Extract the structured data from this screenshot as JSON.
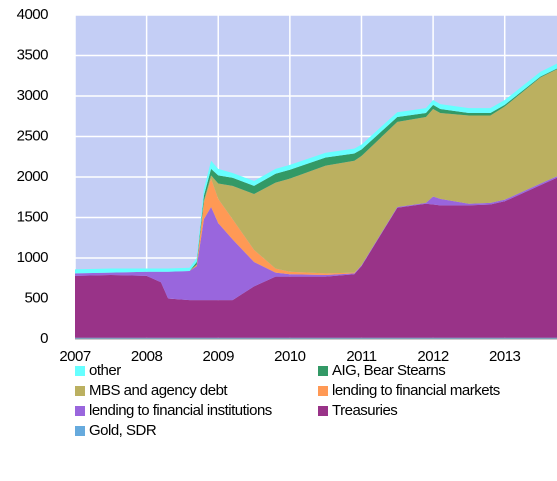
{
  "chart_data": {
    "type": "stacked_area",
    "x": [
      2007,
      2007.5,
      2008,
      2008.2,
      2008.3,
      2008.6,
      2008.7,
      2008.8,
      2008.9,
      2009.0,
      2009.2,
      2009.5,
      2009.8,
      2010.0,
      2010.5,
      2010.9,
      2011.0,
      2011.5,
      2011.9,
      2012.0,
      2012.1,
      2012.5,
      2012.8,
      2013.0,
      2013.5,
      2013.73
    ],
    "series": [
      {
        "name": "other",
        "color": "#66ffff",
        "values": [
          50,
          50,
          40,
          40,
          40,
          40,
          50,
          80,
          100,
          80,
          60,
          60,
          60,
          60,
          60,
          60,
          60,
          60,
          60,
          60,
          60,
          60,
          60,
          60,
          60,
          60
        ]
      },
      {
        "name": "AIG, Bear Stearns",
        "color": "#339966",
        "values": [
          0,
          0,
          0,
          0,
          0,
          0,
          30,
          60,
          80,
          100,
          100,
          100,
          110,
          110,
          100,
          90,
          80,
          60,
          50,
          50,
          50,
          30,
          30,
          20,
          10,
          10
        ]
      },
      {
        "name": "MBS and agency debt",
        "color": "#bbb060",
        "values": [
          0,
          0,
          0,
          0,
          0,
          0,
          0,
          30,
          40,
          190,
          410,
          690,
          1060,
          1150,
          1330,
          1380,
          1350,
          1050,
          1060,
          1080,
          1060,
          1090,
          1080,
          1150,
          1310,
          1320
        ]
      },
      {
        "name": "lending to financial markets",
        "color": "#ff9955",
        "values": [
          0,
          0,
          0,
          0,
          0,
          0,
          20,
          200,
          350,
          300,
          250,
          150,
          50,
          30,
          20,
          10,
          0,
          0,
          0,
          0,
          0,
          0,
          0,
          0,
          0,
          0
        ]
      },
      {
        "name": "lending to financial institutions",
        "color": "#9966dd",
        "values": [
          30,
          30,
          50,
          130,
          330,
          360,
          420,
          1000,
          1150,
          950,
          750,
          300,
          50,
          30,
          20,
          10,
          10,
          10,
          10,
          100,
          80,
          20,
          20,
          20,
          20,
          20
        ]
      },
      {
        "name": "Treasuries",
        "color": "#993388",
        "values": [
          765,
          775,
          765,
          685,
          485,
          465,
          465,
          465,
          465,
          465,
          465,
          635,
          755,
          755,
          755,
          785,
          885,
          1605,
          1655,
          1645,
          1635,
          1635,
          1645,
          1685,
          1885,
          1975
        ]
      },
      {
        "name": "Gold, SDR",
        "color": "#66aadd",
        "values": [
          15,
          15,
          15,
          15,
          15,
          15,
          15,
          15,
          15,
          15,
          15,
          15,
          15,
          15,
          15,
          15,
          15,
          15,
          15,
          15,
          15,
          15,
          15,
          15,
          15,
          15
        ]
      }
    ],
    "xlim": [
      2007,
      2013.73
    ],
    "xticks": [
      2007,
      2008,
      2009,
      2010,
      2011,
      2012,
      2013
    ],
    "ylim": [
      0,
      4000
    ],
    "yticks": [
      0,
      500,
      1000,
      1500,
      2000,
      2500,
      3000,
      3500,
      4000
    ],
    "grid": true,
    "legend": "bottom",
    "background": "#c4cef5"
  }
}
